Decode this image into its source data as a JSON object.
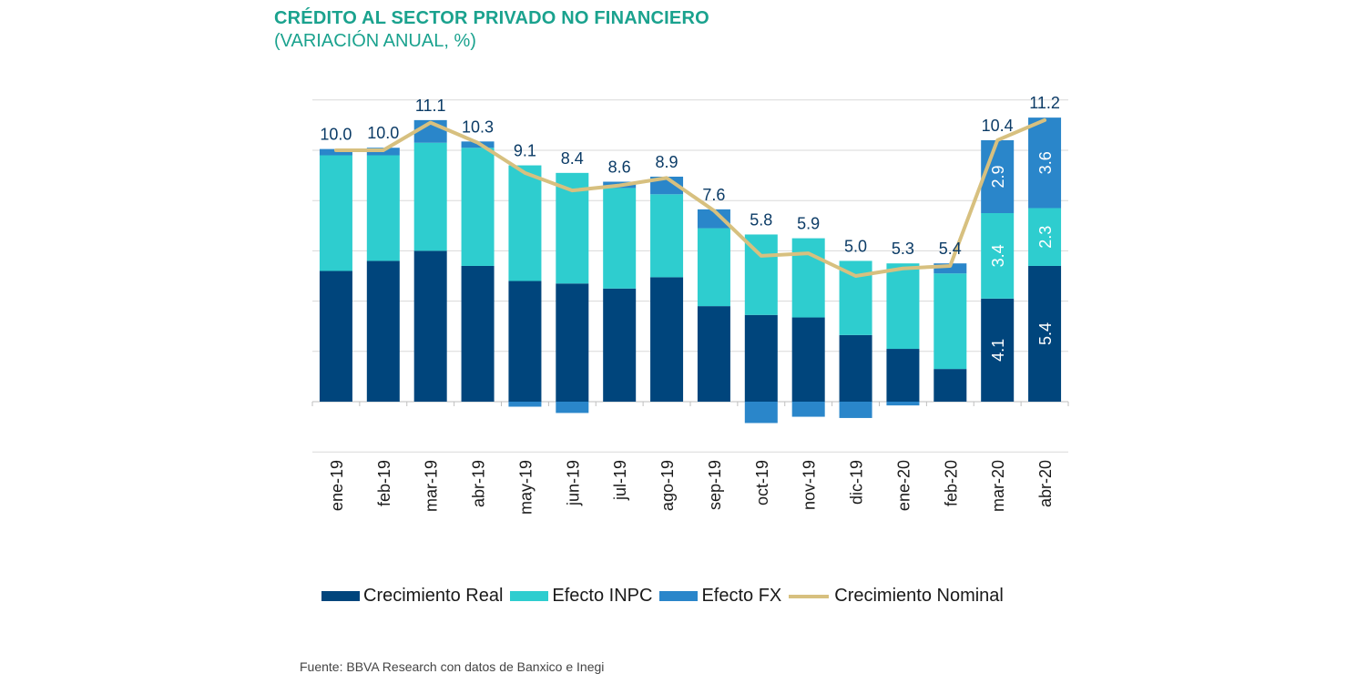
{
  "title": "CRÉDITO AL SECTOR PRIVADO NO FINANCIERO",
  "subtitle": "(VARIACIÓN ANUAL, %)",
  "source": "Fuente: BBVA Research con datos de Banxico e Inegi",
  "colors": {
    "real": "#00457c",
    "inpc": "#2ecdcf",
    "fx": "#2a86ca",
    "nominal": "#d7c07f",
    "title": "#1aa28e",
    "nominal_label": "#0b3b66",
    "grid": "#d9d9d9"
  },
  "chart_data": {
    "type": "bar",
    "stacked": true,
    "categories": [
      "ene-19",
      "feb-19",
      "mar-19",
      "abr-19",
      "may-19",
      "jun-19",
      "jul-19",
      "ago-19",
      "sep-19",
      "oct-19",
      "nov-19",
      "dic-19",
      "ene-20",
      "feb-20",
      "mar-20",
      "abr-20"
    ],
    "series": [
      {
        "name": "Crecimiento Real",
        "key": "real",
        "values": [
          5.2,
          5.6,
          6.0,
          5.4,
          4.8,
          4.7,
          4.5,
          4.95,
          3.8,
          3.45,
          3.35,
          2.65,
          2.1,
          1.3,
          4.1,
          5.4
        ]
      },
      {
        "name": "Efecto INPC",
        "key": "inpc",
        "values": [
          4.6,
          4.2,
          4.3,
          4.7,
          4.6,
          4.4,
          4.0,
          3.3,
          3.1,
          3.2,
          3.15,
          2.95,
          3.4,
          3.8,
          3.4,
          2.3
        ]
      },
      {
        "name": "Efecto FX",
        "key": "fx",
        "values": [
          0.25,
          0.3,
          0.9,
          0.25,
          -0.2,
          -0.45,
          0.25,
          0.7,
          0.75,
          -0.85,
          -0.6,
          -0.65,
          -0.15,
          0.4,
          2.9,
          3.6
        ]
      },
      {
        "name": "Crecimiento Nominal",
        "key": "nominal",
        "type": "line",
        "values": [
          10.0,
          10.0,
          11.1,
          10.3,
          9.1,
          8.4,
          8.6,
          8.9,
          7.6,
          5.8,
          5.9,
          5.0,
          5.3,
          5.4,
          10.4,
          11.2
        ]
      }
    ],
    "nominal_labels": [
      "10.0",
      "10.0",
      "11.1",
      "10.3",
      "9.1",
      "8.4",
      "8.6",
      "8.9",
      "7.6",
      "5.8",
      "5.9",
      "5.0",
      "5.3",
      "5.4",
      "10.4",
      "11.2"
    ],
    "segment_labels": [
      {
        "index": 14,
        "real": "4.1",
        "inpc": "3.4",
        "fx": "2.9"
      },
      {
        "index": 15,
        "real": "5.4",
        "inpc": "2.3",
        "fx": "3.6"
      }
    ],
    "ylim": [
      -2,
      12
    ],
    "grid": true,
    "y_tick_labels_visible": false
  },
  "legend": [
    {
      "label": "Crecimiento Real",
      "key": "real",
      "kind": "bar"
    },
    {
      "label": "Efecto INPC",
      "key": "inpc",
      "kind": "bar"
    },
    {
      "label": "Efecto FX",
      "key": "fx",
      "kind": "bar"
    },
    {
      "label": "Crecimiento Nominal",
      "key": "nominal",
      "kind": "line"
    }
  ]
}
